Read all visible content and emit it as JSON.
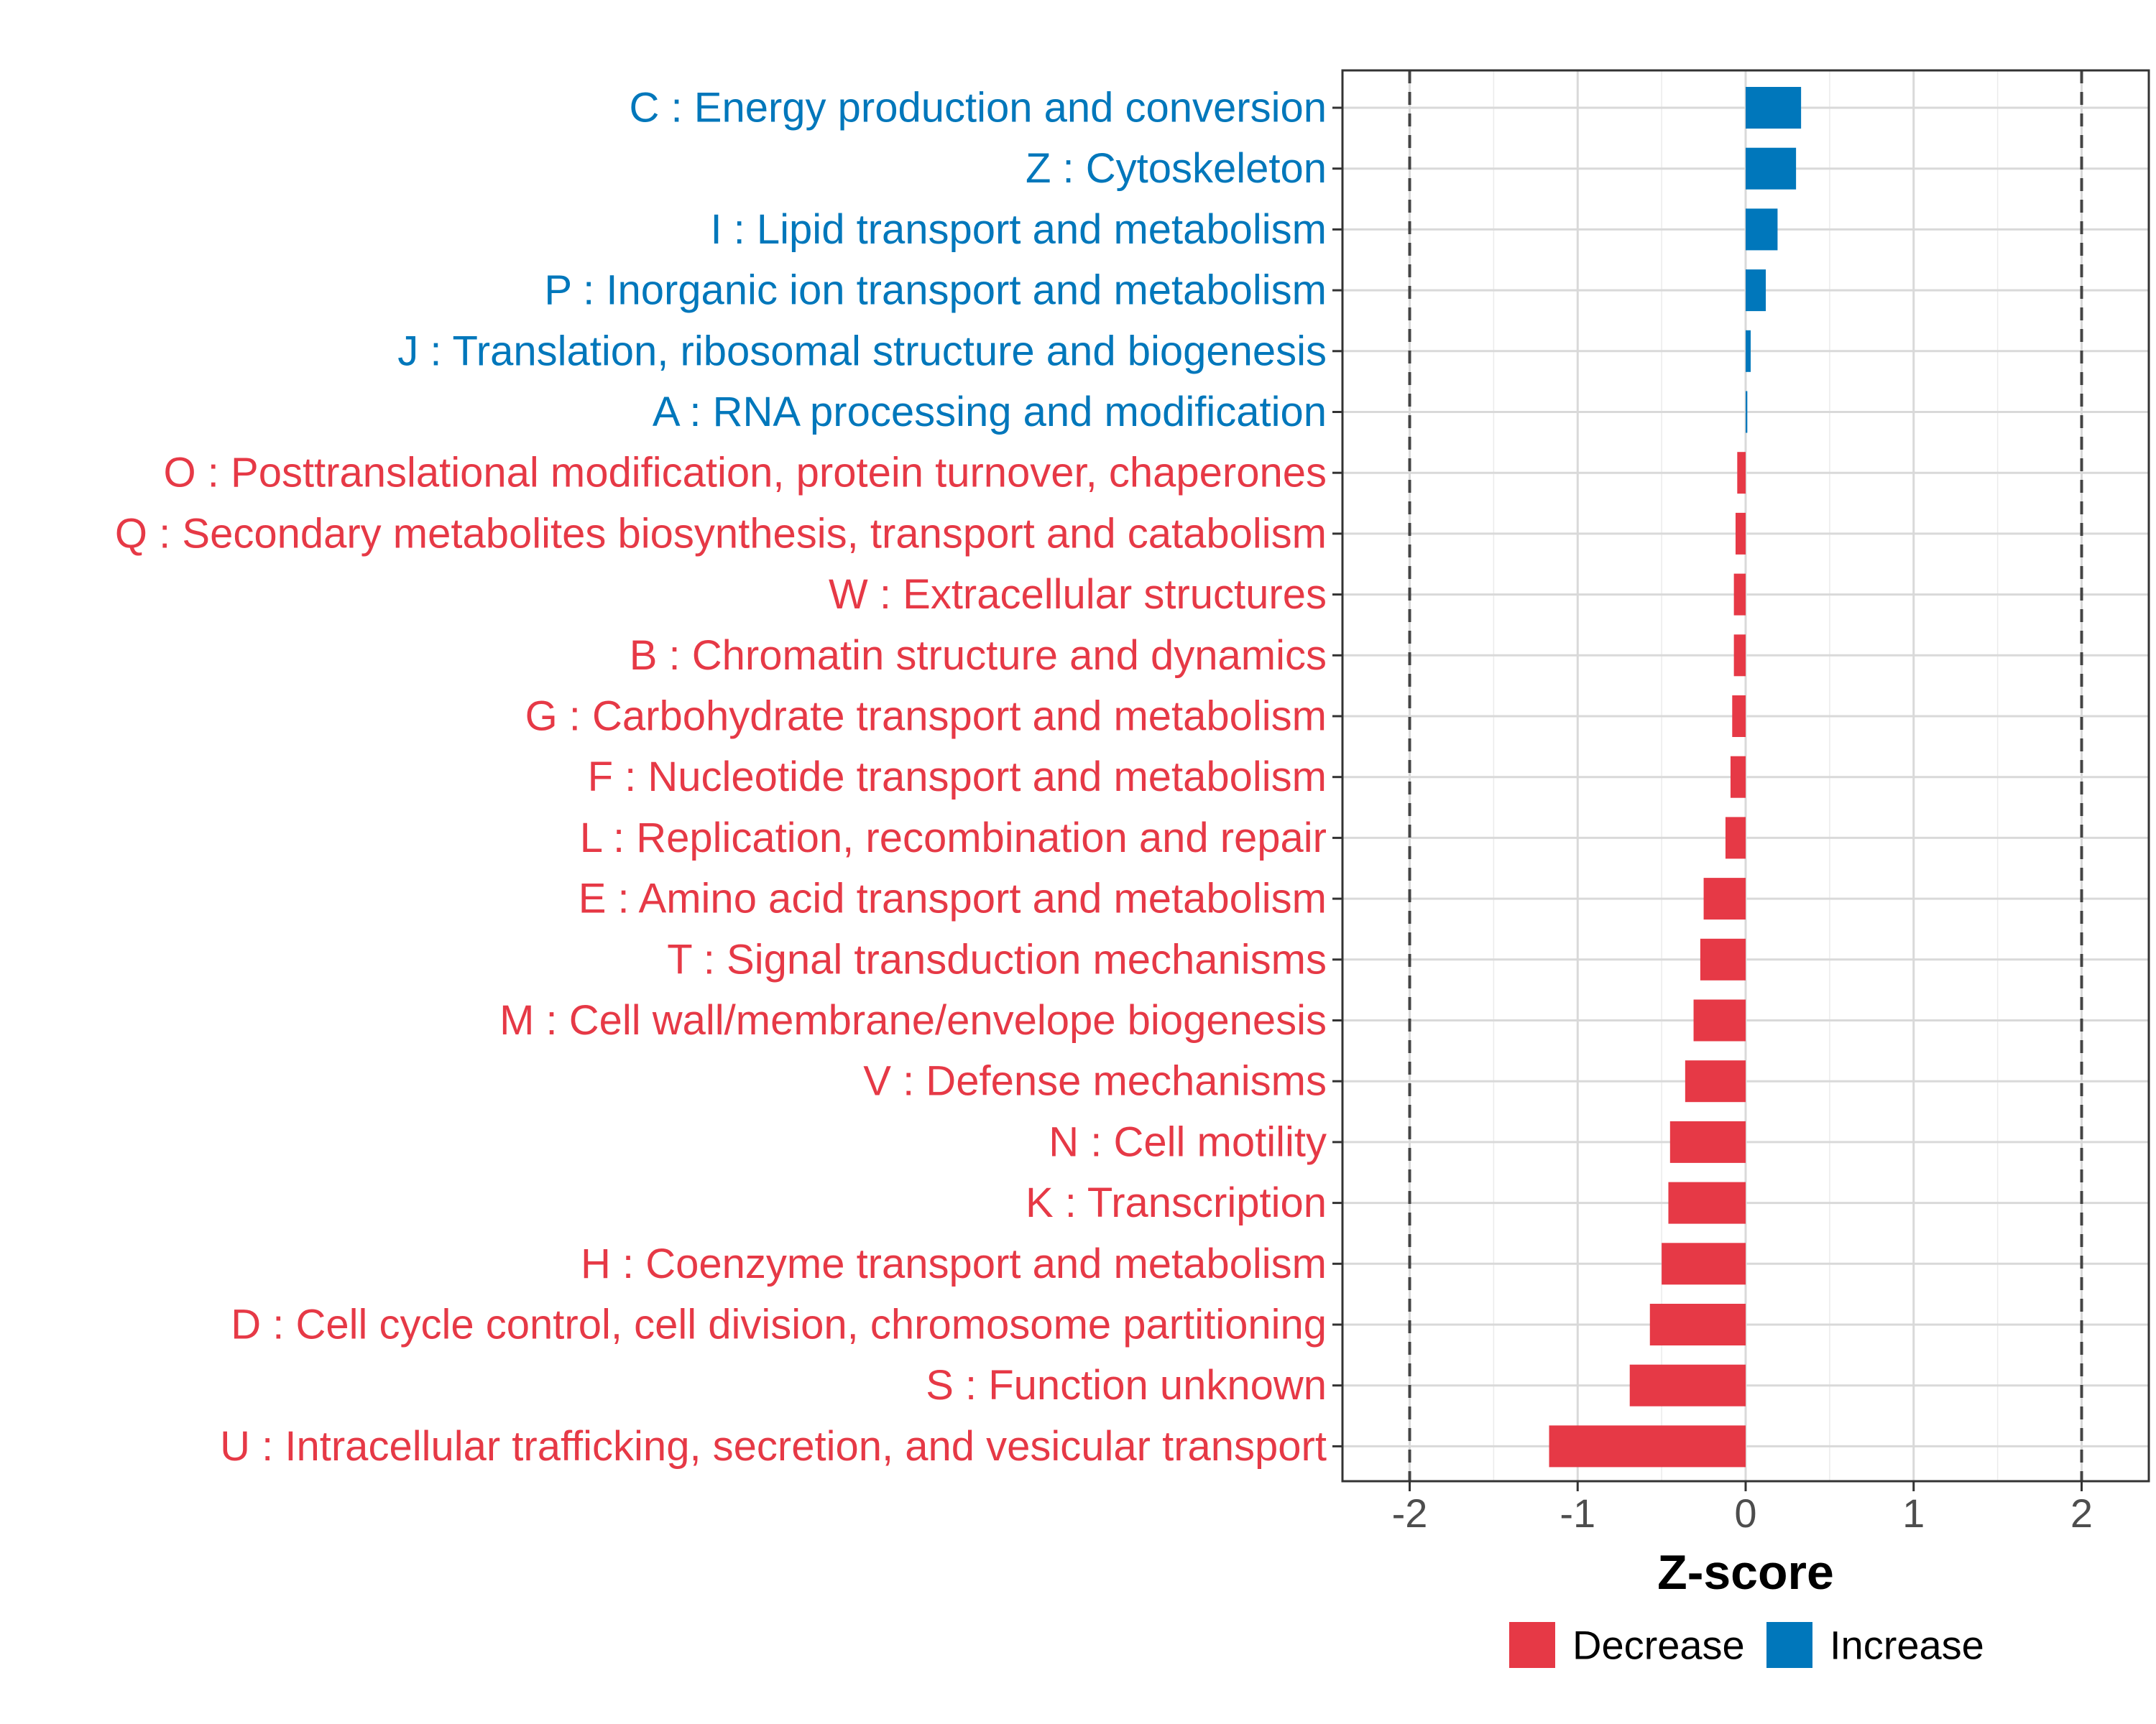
{
  "chart_data": {
    "type": "bar",
    "orientation": "horizontal",
    "xlabel": "Z-score",
    "ylabel": "",
    "xlim": [
      -2.4,
      2.4
    ],
    "xticks": [
      -2,
      -1,
      0,
      1,
      2
    ],
    "reference_lines": [
      -2,
      2
    ],
    "grid": true,
    "legend": {
      "placement": "bottom",
      "entries": [
        {
          "label": "Decrease",
          "color": "#E63946"
        },
        {
          "label": "Increase",
          "color": "#0077BB"
        }
      ]
    },
    "categories": [
      {
        "label": "C : Energy production and conversion",
        "value": 0.33,
        "direction": "Increase"
      },
      {
        "label": "Z : Cytoskeleton",
        "value": 0.3,
        "direction": "Increase"
      },
      {
        "label": "I : Lipid transport and metabolism",
        "value": 0.19,
        "direction": "Increase"
      },
      {
        "label": "P : Inorganic ion transport and metabolism",
        "value": 0.12,
        "direction": "Increase"
      },
      {
        "label": "J : Translation, ribosomal structure and biogenesis",
        "value": 0.03,
        "direction": "Increase"
      },
      {
        "label": "A : RNA processing and modification",
        "value": 0.01,
        "direction": "Increase"
      },
      {
        "label": "O : Posttranslational modification, protein turnover, chaperones",
        "value": -0.05,
        "direction": "Decrease"
      },
      {
        "label": "Q : Secondary metabolites biosynthesis, transport and catabolism",
        "value": -0.06,
        "direction": "Decrease"
      },
      {
        "label": "W : Extracellular structures",
        "value": -0.07,
        "direction": "Decrease"
      },
      {
        "label": "B : Chromatin structure and dynamics",
        "value": -0.07,
        "direction": "Decrease"
      },
      {
        "label": "G : Carbohydrate transport and metabolism",
        "value": -0.08,
        "direction": "Decrease"
      },
      {
        "label": "F : Nucleotide transport and metabolism",
        "value": -0.09,
        "direction": "Decrease"
      },
      {
        "label": "L : Replication, recombination and repair",
        "value": -0.12,
        "direction": "Decrease"
      },
      {
        "label": "E : Amino acid transport and metabolism",
        "value": -0.25,
        "direction": "Decrease"
      },
      {
        "label": "T : Signal transduction mechanisms",
        "value": -0.27,
        "direction": "Decrease"
      },
      {
        "label": "M : Cell wall/membrane/envelope biogenesis",
        "value": -0.31,
        "direction": "Decrease"
      },
      {
        "label": "V : Defense mechanisms",
        "value": -0.36,
        "direction": "Decrease"
      },
      {
        "label": "N : Cell motility",
        "value": -0.45,
        "direction": "Decrease"
      },
      {
        "label": "K : Transcription",
        "value": -0.46,
        "direction": "Decrease"
      },
      {
        "label": "H : Coenzyme transport and metabolism",
        "value": -0.5,
        "direction": "Decrease"
      },
      {
        "label": "D : Cell cycle control, cell division, chromosome partitioning",
        "value": -0.57,
        "direction": "Decrease"
      },
      {
        "label": "S : Function unknown",
        "value": -0.69,
        "direction": "Decrease"
      },
      {
        "label": "U : Intracellular trafficking, secretion, and vesicular transport",
        "value": -1.17,
        "direction": "Decrease"
      }
    ]
  }
}
